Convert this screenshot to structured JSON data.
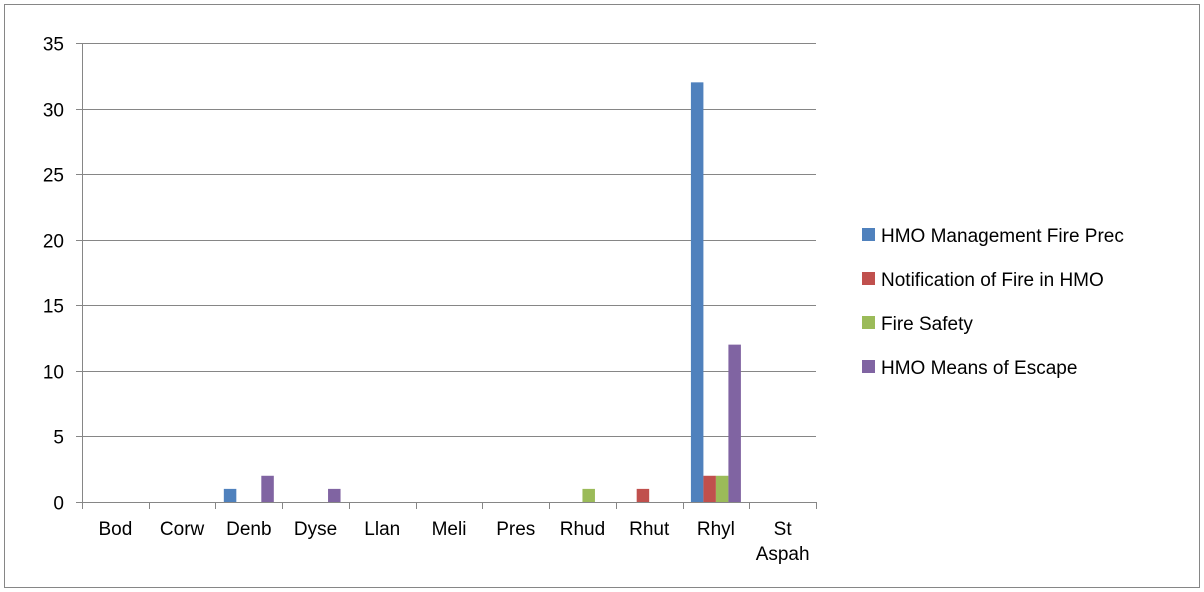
{
  "chart_data": {
    "type": "bar",
    "title": "",
    "xlabel": "",
    "ylabel": "",
    "ylim": [
      0,
      35
    ],
    "ytick_step": 5,
    "grid": true,
    "legend_position": "right",
    "categories": [
      [
        "Bod"
      ],
      [
        "Corw"
      ],
      [
        "Denb"
      ],
      [
        "Dyse"
      ],
      [
        "Llan"
      ],
      [
        "Meli"
      ],
      [
        "Pres"
      ],
      [
        "Rhud"
      ],
      [
        "Rhut"
      ],
      [
        "Rhyl"
      ],
      [
        "St",
        "Aspah"
      ]
    ],
    "series": [
      {
        "name": "HMO Management Fire Prec",
        "color": "#4f81bd",
        "values": [
          0,
          0,
          1,
          0,
          0,
          0,
          0,
          0,
          0,
          32,
          0
        ]
      },
      {
        "name": "Notification of Fire in HMO",
        "color": "#c0504d",
        "values": [
          0,
          0,
          0,
          0,
          0,
          0,
          0,
          0,
          1,
          2,
          0
        ]
      },
      {
        "name": "Fire Safety",
        "color": "#9bbb59",
        "values": [
          0,
          0,
          0,
          0,
          0,
          0,
          0,
          1,
          0,
          2,
          0
        ]
      },
      {
        "name": "HMO Means of Escape",
        "color": "#8064a2",
        "values": [
          0,
          0,
          2,
          1,
          0,
          0,
          0,
          0,
          0,
          12,
          0
        ]
      }
    ]
  }
}
